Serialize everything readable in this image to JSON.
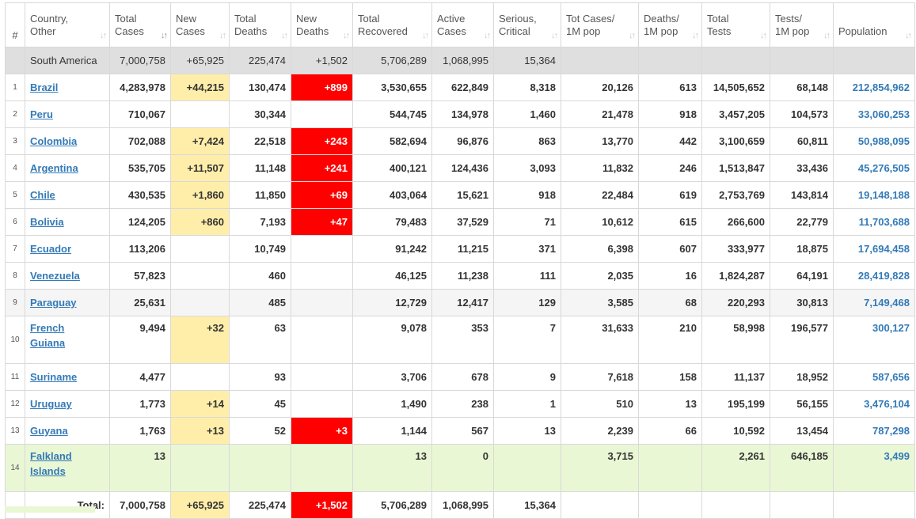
{
  "headers": [
    {
      "label1": "#",
      "label2": ""
    },
    {
      "label1": "Country,",
      "label2": "Other"
    },
    {
      "label1": "Total",
      "label2": "Cases"
    },
    {
      "label1": "New",
      "label2": "Cases"
    },
    {
      "label1": "Total",
      "label2": "Deaths"
    },
    {
      "label1": "New",
      "label2": "Deaths"
    },
    {
      "label1": "Total",
      "label2": "Recovered"
    },
    {
      "label1": "Active",
      "label2": "Cases"
    },
    {
      "label1": "Serious,",
      "label2": "Critical"
    },
    {
      "label1": "Tot Cases/",
      "label2": "1M pop"
    },
    {
      "label1": "Deaths/",
      "label2": "1M pop"
    },
    {
      "label1": "Total",
      "label2": "Tests"
    },
    {
      "label1": "Tests/",
      "label2": "1M pop"
    },
    {
      "label1": "",
      "label2": "Population"
    }
  ],
  "continent": {
    "name": "South America",
    "total_cases": "7,000,758",
    "new_cases": "+65,925",
    "total_deaths": "225,474",
    "new_deaths": "+1,502",
    "total_recovered": "5,706,289",
    "active_cases": "1,068,995",
    "serious": "15,364",
    "cases_per_m": "",
    "deaths_per_m": "",
    "total_tests": "",
    "tests_per_m": "",
    "population": ""
  },
  "rows": [
    {
      "idx": "1",
      "country": "Brazil",
      "country2": "",
      "total_cases": "4,283,978",
      "new_cases": "+44,215",
      "total_deaths": "130,474",
      "new_deaths": "+899",
      "total_recovered": "3,530,655",
      "active_cases": "622,849",
      "serious": "8,318",
      "cases_per_m": "20,126",
      "deaths_per_m": "613",
      "total_tests": "14,505,652",
      "tests_per_m": "68,148",
      "population": "212,854,962"
    },
    {
      "idx": "2",
      "country": "Peru",
      "country2": "",
      "total_cases": "710,067",
      "new_cases": "",
      "total_deaths": "30,344",
      "new_deaths": "",
      "total_recovered": "544,745",
      "active_cases": "134,978",
      "serious": "1,460",
      "cases_per_m": "21,478",
      "deaths_per_m": "918",
      "total_tests": "3,457,205",
      "tests_per_m": "104,573",
      "population": "33,060,253"
    },
    {
      "idx": "3",
      "country": "Colombia",
      "country2": "",
      "total_cases": "702,088",
      "new_cases": "+7,424",
      "total_deaths": "22,518",
      "new_deaths": "+243",
      "total_recovered": "582,694",
      "active_cases": "96,876",
      "serious": "863",
      "cases_per_m": "13,770",
      "deaths_per_m": "442",
      "total_tests": "3,100,659",
      "tests_per_m": "60,811",
      "population": "50,988,095"
    },
    {
      "idx": "4",
      "country": "Argentina",
      "country2": "",
      "total_cases": "535,705",
      "new_cases": "+11,507",
      "total_deaths": "11,148",
      "new_deaths": "+241",
      "total_recovered": "400,121",
      "active_cases": "124,436",
      "serious": "3,093",
      "cases_per_m": "11,832",
      "deaths_per_m": "246",
      "total_tests": "1,513,847",
      "tests_per_m": "33,436",
      "population": "45,276,505"
    },
    {
      "idx": "5",
      "country": "Chile",
      "country2": "",
      "total_cases": "430,535",
      "new_cases": "+1,860",
      "total_deaths": "11,850",
      "new_deaths": "+69",
      "total_recovered": "403,064",
      "active_cases": "15,621",
      "serious": "918",
      "cases_per_m": "22,484",
      "deaths_per_m": "619",
      "total_tests": "2,753,769",
      "tests_per_m": "143,814",
      "population": "19,148,188"
    },
    {
      "idx": "6",
      "country": "Bolivia",
      "country2": "",
      "total_cases": "124,205",
      "new_cases": "+860",
      "total_deaths": "7,193",
      "new_deaths": "+47",
      "total_recovered": "79,483",
      "active_cases": "37,529",
      "serious": "71",
      "cases_per_m": "10,612",
      "deaths_per_m": "615",
      "total_tests": "266,600",
      "tests_per_m": "22,779",
      "population": "11,703,688"
    },
    {
      "idx": "7",
      "country": "Ecuador",
      "country2": "",
      "total_cases": "113,206",
      "new_cases": "",
      "total_deaths": "10,749",
      "new_deaths": "",
      "total_recovered": "91,242",
      "active_cases": "11,215",
      "serious": "371",
      "cases_per_m": "6,398",
      "deaths_per_m": "607",
      "total_tests": "333,977",
      "tests_per_m": "18,875",
      "population": "17,694,458"
    },
    {
      "idx": "8",
      "country": "Venezuela",
      "country2": "",
      "total_cases": "57,823",
      "new_cases": "",
      "total_deaths": "460",
      "new_deaths": "",
      "total_recovered": "46,125",
      "active_cases": "11,238",
      "serious": "111",
      "cases_per_m": "2,035",
      "deaths_per_m": "16",
      "total_tests": "1,824,287",
      "tests_per_m": "64,191",
      "population": "28,419,828"
    },
    {
      "idx": "9",
      "country": "Paraguay",
      "country2": "",
      "total_cases": "25,631",
      "new_cases": "",
      "total_deaths": "485",
      "new_deaths": "",
      "total_recovered": "12,729",
      "active_cases": "12,417",
      "serious": "129",
      "cases_per_m": "3,585",
      "deaths_per_m": "68",
      "total_tests": "220,293",
      "tests_per_m": "30,813",
      "population": "7,149,468"
    },
    {
      "idx": "10",
      "country": "French",
      "country2": "Guiana",
      "total_cases": "9,494",
      "new_cases": "+32",
      "total_deaths": "63",
      "new_deaths": "",
      "total_recovered": "9,078",
      "active_cases": "353",
      "serious": "7",
      "cases_per_m": "31,633",
      "deaths_per_m": "210",
      "total_tests": "58,998",
      "tests_per_m": "196,577",
      "population": "300,127"
    },
    {
      "idx": "11",
      "country": "Suriname",
      "country2": "",
      "total_cases": "4,477",
      "new_cases": "",
      "total_deaths": "93",
      "new_deaths": "",
      "total_recovered": "3,706",
      "active_cases": "678",
      "serious": "9",
      "cases_per_m": "7,618",
      "deaths_per_m": "158",
      "total_tests": "11,137",
      "tests_per_m": "18,952",
      "population": "587,656"
    },
    {
      "idx": "12",
      "country": "Uruguay",
      "country2": "",
      "total_cases": "1,773",
      "new_cases": "+14",
      "total_deaths": "45",
      "new_deaths": "",
      "total_recovered": "1,490",
      "active_cases": "238",
      "serious": "1",
      "cases_per_m": "510",
      "deaths_per_m": "13",
      "total_tests": "195,199",
      "tests_per_m": "56,155",
      "population": "3,476,104"
    },
    {
      "idx": "13",
      "country": "Guyana",
      "country2": "",
      "total_cases": "1,763",
      "new_cases": "+13",
      "total_deaths": "52",
      "new_deaths": "+3",
      "total_recovered": "1,144",
      "active_cases": "567",
      "serious": "13",
      "cases_per_m": "2,239",
      "deaths_per_m": "66",
      "total_tests": "10,592",
      "tests_per_m": "13,454",
      "population": "787,298"
    },
    {
      "idx": "14",
      "country": "Falkland",
      "country2": "Islands",
      "total_cases": "13",
      "new_cases": "",
      "total_deaths": "",
      "new_deaths": "",
      "total_recovered": "13",
      "active_cases": "0",
      "serious": "",
      "cases_per_m": "3,715",
      "deaths_per_m": "",
      "total_tests": "2,261",
      "tests_per_m": "646,185",
      "population": "3,499"
    }
  ],
  "total": {
    "label": "Total:",
    "total_cases": "7,000,758",
    "new_cases": "+65,925",
    "total_deaths": "225,474",
    "new_deaths": "+1,502",
    "total_recovered": "5,706,289",
    "active_cases": "1,068,995",
    "serious": "15,364"
  },
  "sort_icon": "sort-arrows-icon",
  "colors": {
    "new_cases_bg": "#ffeeaa",
    "new_deaths_bg": "#ff0000",
    "link": "#337ab7",
    "continent_bg": "#dfdfdf",
    "highlight_row_bg": "#eaf7d5"
  }
}
